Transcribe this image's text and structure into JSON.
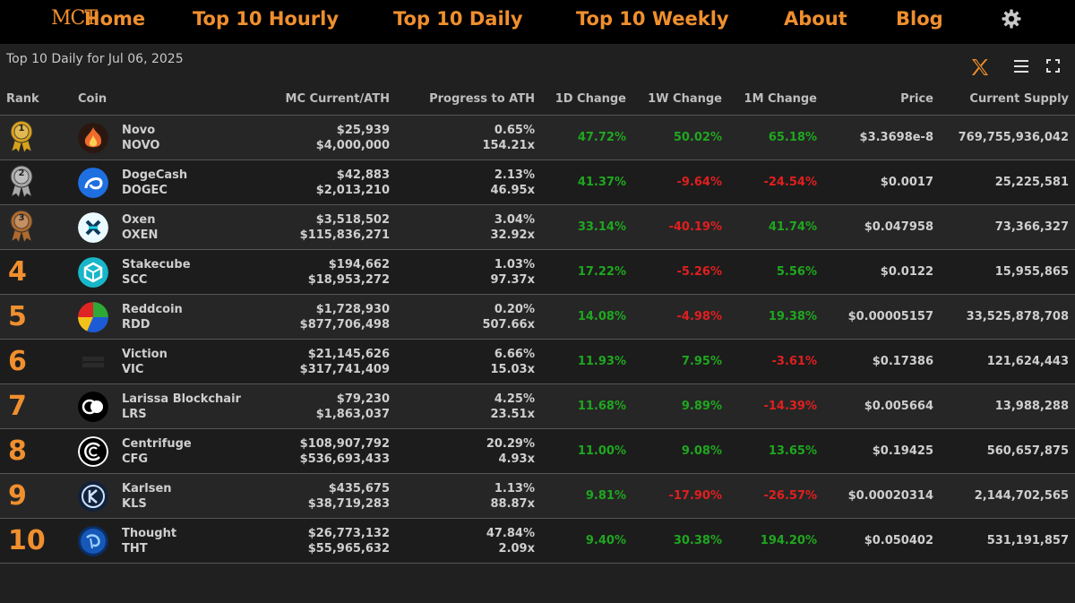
{
  "nav": {
    "logo": "MCT",
    "items": [
      "Home",
      "Top 10 Hourly",
      "Top 10 Daily",
      "Top 10 Weekly",
      "About",
      "Blog"
    ]
  },
  "subtitle": "Top 10 Daily for Jul 06, 2025",
  "columns": [
    "Rank",
    "Coin",
    "MC Current/ATH",
    "Progress to ATH",
    "1D Change",
    "1W Change",
    "1M Change",
    "Price",
    "Current Supply"
  ],
  "colors": {
    "accent": "#f08f2e",
    "positive": "#1fa71f",
    "negative": "#e01f1f"
  },
  "rows": [
    {
      "rank": "1",
      "name": "Novo",
      "symbol": "NOVO",
      "mc": "$25,939",
      "ath": "$4,000,000",
      "progress": "0.65%",
      "multiple": "154.21x",
      "d1": "47.72%",
      "w1": "50.02%",
      "m1": "65.18%",
      "price": "$3.3698e-8",
      "supply": "769,755,936,042"
    },
    {
      "rank": "2",
      "name": "DogeCash",
      "symbol": "DOGEC",
      "mc": "$42,883",
      "ath": "$2,013,210",
      "progress": "2.13%",
      "multiple": "46.95x",
      "d1": "41.37%",
      "w1": "-9.64%",
      "m1": "-24.54%",
      "price": "$0.0017",
      "supply": "25,225,581"
    },
    {
      "rank": "3",
      "name": "Oxen",
      "symbol": "OXEN",
      "mc": "$3,518,502",
      "ath": "$115,836,271",
      "progress": "3.04%",
      "multiple": "32.92x",
      "d1": "33.14%",
      "w1": "-40.19%",
      "m1": "41.74%",
      "price": "$0.047958",
      "supply": "73,366,327"
    },
    {
      "rank": "4",
      "name": "Stakecube",
      "symbol": "SCC",
      "mc": "$194,662",
      "ath": "$18,953,272",
      "progress": "1.03%",
      "multiple": "97.37x",
      "d1": "17.22%",
      "w1": "-5.26%",
      "m1": "5.56%",
      "price": "$0.0122",
      "supply": "15,955,865"
    },
    {
      "rank": "5",
      "name": "Reddcoin",
      "symbol": "RDD",
      "mc": "$1,728,930",
      "ath": "$877,706,498",
      "progress": "0.20%",
      "multiple": "507.66x",
      "d1": "14.08%",
      "w1": "-4.98%",
      "m1": "19.38%",
      "price": "$0.00005157",
      "supply": "33,525,878,708"
    },
    {
      "rank": "6",
      "name": "Viction",
      "symbol": "VIC",
      "mc": "$21,145,626",
      "ath": "$317,741,409",
      "progress": "6.66%",
      "multiple": "15.03x",
      "d1": "11.93%",
      "w1": "7.95%",
      "m1": "-3.61%",
      "price": "$0.17386",
      "supply": "121,624,443"
    },
    {
      "rank": "7",
      "name": "Larissa Blockchair",
      "symbol": "LRS",
      "mc": "$79,230",
      "ath": "$1,863,037",
      "progress": "4.25%",
      "multiple": "23.51x",
      "d1": "11.68%",
      "w1": "9.89%",
      "m1": "-14.39%",
      "price": "$0.005664",
      "supply": "13,988,288"
    },
    {
      "rank": "8",
      "name": "Centrifuge",
      "symbol": "CFG",
      "mc": "$108,907,792",
      "ath": "$536,693,433",
      "progress": "20.29%",
      "multiple": "4.93x",
      "d1": "11.00%",
      "w1": "9.08%",
      "m1": "13.65%",
      "price": "$0.19425",
      "supply": "560,657,875"
    },
    {
      "rank": "9",
      "name": "Karlsen",
      "symbol": "KLS",
      "mc": "$435,675",
      "ath": "$38,719,283",
      "progress": "1.13%",
      "multiple": "88.87x",
      "d1": "9.81%",
      "w1": "-17.90%",
      "m1": "-26.57%",
      "price": "$0.00020314",
      "supply": "2,144,702,565"
    },
    {
      "rank": "10",
      "name": "Thought",
      "symbol": "THT",
      "mc": "$26,773,132",
      "ath": "$55,965,632",
      "progress": "47.84%",
      "multiple": "2.09x",
      "d1": "9.40%",
      "w1": "30.38%",
      "m1": "194.20%",
      "price": "$0.050402",
      "supply": "531,191,857"
    }
  ]
}
